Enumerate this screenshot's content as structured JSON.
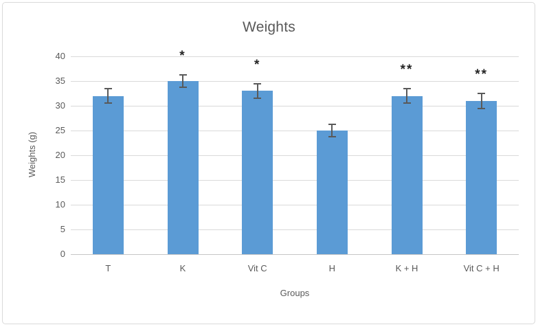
{
  "frame": {
    "background": "#ffffff",
    "border_color": "#d9d9d9"
  },
  "chart_data": {
    "type": "bar",
    "title": "Weights",
    "xlabel": "Groups",
    "ylabel": "Weights (g)",
    "categories": [
      "T",
      "K",
      "Vit C",
      "H",
      "K + H",
      "Vit C + H"
    ],
    "values": [
      32,
      35,
      33,
      25,
      32,
      31
    ],
    "error_bars": [
      1.5,
      1.3,
      1.5,
      1.3,
      1.5,
      1.5
    ],
    "annotations": [
      "",
      "*",
      "*",
      "",
      "**",
      "**"
    ],
    "ylim": [
      0,
      40
    ],
    "ytick_step": 5,
    "yticks": [
      0,
      5,
      10,
      15,
      20,
      25,
      30,
      35,
      40
    ],
    "grid": true,
    "legend": "none",
    "bar_color": "#5B9BD5",
    "error_color": "#595959",
    "gridline_color": "#d9d9d9",
    "axis_line_color": "#c6c6c6",
    "text_color": "#595959",
    "annotation_color": "#262626"
  }
}
